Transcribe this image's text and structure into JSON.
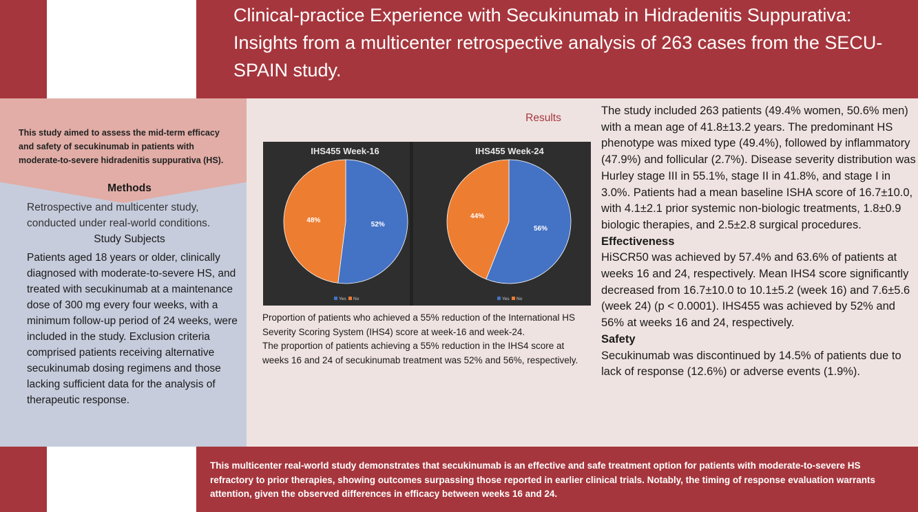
{
  "title": "Clinical-practice Experience with Secukinumab in Hidradenitis Suppurativa: Insights from a multicenter retrospective analysis of 263 cases from the SECU-SPAIN study.",
  "aim": "This study aimed to assess the mid-term efficacy and safety of secukinumab in patients with moderate-to-severe hidradenitis suppurativa (HS).",
  "methods": {
    "heading": "Methods",
    "text": "Retrospective and multicenter study, conducted under real-world conditions.",
    "subjects_heading": "Study Subjects",
    "subjects_text": "Patients aged 18 years or older, clinically diagnosed with moderate-to-severe HS, and treated with secukinumab at a maintenance dose of 300 mg every four weeks, with a minimum follow-up period of 24 weeks, were included in the study. Exclusion criteria comprised patients receiving alternative secukinumab dosing regimens and those lacking sufficient data for the analysis of therapeutic response."
  },
  "results": {
    "heading": "Results",
    "caption_1": "Proportion of patients who achieved a 55% reduction of the International HS Severity Scoring System (IHS4) score at week-16 and week-24.",
    "caption_2": "The proportion of patients achieving a 55% reduction in the IHS4 score at weeks 16 and 24 of secukinumab treatment was 52% and 56%, respectively.",
    "text_1": "The study included 263 patients (49.4% women, 50.6% men) with a mean age of 41.8±13.2 years. The predominant HS phenotype was mixed type (49.4%), followed by inflammatory (47.9%) and follicular (2.7%). Disease severity distribution was Hurley stage III in 55.1%, stage II in 41.8%, and stage I in 3.0%. Patients had a mean baseline ISHA score of 16.7±10.0, with 4.1±2.1 prior systemic non-biologic treatments, 1.8±0.9 biologic therapies, and 2.5±2.8 surgical procedures.",
    "effectiveness_heading": "Effectiveness",
    "effectiveness_text": "HiSCR50 was achieved by 57.4% and 63.6% of patients at weeks 16 and 24, respectively. Mean IHS4 score significantly decreased from 16.7±10.0 to 10.1±5.2 (week 16) and 7.6±5.6 (week 24) (p < 0.0001). IHS455 was achieved by 52% and 56% at weeks 16 and 24, respectively.",
    "safety_heading": "Safety",
    "safety_text": "Secukinumab was discontinued by 14.5% of patients due to lack of response (12.6%) or adverse events (1.9%)."
  },
  "conclusion": "This multicenter real-world study demonstrates that secukinumab is an effective and safe treatment option for patients with moderate-to-severe HS refractory to prior therapies, showing outcomes surpassing those reported in earlier clinical trials. Notably, the timing of response evaluation warrants attention, given the observed differences in efficacy between weeks 16 and 24.",
  "colors": {
    "band": "#a6363d",
    "yes": "#4472c4",
    "no": "#ed7d31"
  },
  "chart_data": [
    {
      "type": "pie",
      "title": "IHS455 Week-16",
      "categories": [
        "Yes",
        "No"
      ],
      "values": [
        52,
        48
      ],
      "labels": [
        "52%",
        "48%"
      ],
      "legend": "bottom"
    },
    {
      "type": "pie",
      "title": "IHS455 Week-24",
      "categories": [
        "Yes",
        "No"
      ],
      "values": [
        56,
        44
      ],
      "labels": [
        "56%",
        "44%"
      ],
      "legend": "bottom"
    }
  ]
}
